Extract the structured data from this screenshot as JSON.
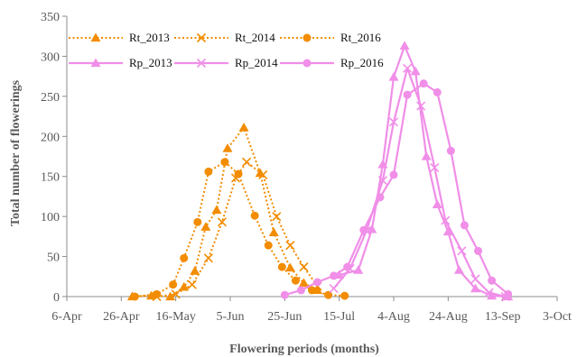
{
  "chart_data": {
    "type": "line",
    "title": "",
    "xlabel": "Flowering periods (months)",
    "ylabel": "Total number of flowerings",
    "x_type": "date",
    "xlim": [
      "6-Apr",
      "3-Oct"
    ],
    "ylim": [
      0,
      350
    ],
    "x_ticks": [
      "6-Apr",
      "26-Apr",
      "16-May",
      "5-Jun",
      "25-Jun",
      "15-Jul",
      "4-Aug",
      "24-Aug",
      "13-Sep",
      "3-Oct"
    ],
    "y_ticks": [
      0,
      50,
      100,
      150,
      200,
      250,
      300,
      350
    ],
    "grid": false,
    "legend_position": "top-left",
    "series": [
      {
        "name": "Rt_2013",
        "color": "#f28c00",
        "line": "dotted",
        "marker": "triangle",
        "x": [
          "30-Apr",
          "7-May",
          "14-May",
          "19-May",
          "23-May",
          "27-May",
          "31-May",
          "4-Jun",
          "10-Jun",
          "16-Jun",
          "21-Jun",
          "27-Jun",
          "2-Jul",
          "7-Jul"
        ],
        "y": [
          0,
          1,
          0,
          12,
          32,
          87,
          108,
          185,
          211,
          154,
          80,
          36,
          17,
          8
        ]
      },
      {
        "name": "Rt_2014",
        "color": "#f28c00",
        "line": "dotted",
        "marker": "x",
        "x": [
          "9-May",
          "16-May",
          "22-May",
          "28-May",
          "2-Jun",
          "7-Jun",
          "11-Jun",
          "17-Jun",
          "22-Jun",
          "27-Jun",
          "2-Jul",
          "7-Jul"
        ],
        "y": [
          0,
          3,
          15,
          48,
          93,
          148,
          168,
          152,
          100,
          64,
          37,
          13
        ]
      },
      {
        "name": "Rt_2016",
        "color": "#f28c00",
        "line": "dotted",
        "marker": "circle",
        "x": [
          "1-May",
          "9-May",
          "15-May",
          "19-May",
          "24-May",
          "28-May",
          "3-Jun",
          "8-Jun",
          "14-Jun",
          "19-Jun",
          "24-Jun",
          "29-Jun",
          "5-Jul",
          "11-Jul",
          "17-Jul"
        ],
        "y": [
          0,
          3,
          15,
          48,
          93,
          156,
          168,
          153,
          101,
          64,
          37,
          20,
          8,
          2,
          1
        ]
      },
      {
        "name": "Rp_2013",
        "color": "#f08ee8",
        "line": "solid",
        "marker": "triangle",
        "x": [
          "15-Jul",
          "22-Jul",
          "27-Jul",
          "31-Jul",
          "4-Aug",
          "8-Aug",
          "12-Aug",
          "16-Aug",
          "20-Aug",
          "24-Aug",
          "28-Aug",
          "3-Sep",
          "9-Sep",
          "15-Sep"
        ],
        "y": [
          27,
          33,
          84,
          165,
          274,
          313,
          281,
          175,
          115,
          81,
          33,
          10,
          1,
          0
        ]
      },
      {
        "name": "Rp_2014",
        "color": "#f08ee8",
        "line": "solid",
        "marker": "x",
        "x": [
          "13-Jul",
          "19-Jul",
          "25-Jul",
          "31-Jul",
          "4-Aug",
          "9-Aug",
          "14-Aug",
          "19-Aug",
          "23-Aug",
          "29-Aug",
          "3-Sep",
          "8-Sep",
          "14-Sep"
        ],
        "y": [
          10,
          35,
          82,
          145,
          218,
          285,
          238,
          161,
          95,
          57,
          22,
          5,
          0
        ]
      },
      {
        "name": "Rp_2016",
        "color": "#f08ee8",
        "line": "solid",
        "marker": "circle",
        "x": [
          "25-Jun",
          "1-Jul",
          "7-Jul",
          "13-Jul",
          "18-Jul",
          "24-Jul",
          "30-Jul",
          "4-Aug",
          "9-Aug",
          "15-Aug",
          "20-Aug",
          "25-Aug",
          "30-Aug",
          "4-Sep",
          "9-Sep",
          "15-Sep"
        ],
        "y": [
          2,
          8,
          18,
          26,
          37,
          83,
          124,
          152,
          252,
          266,
          255,
          182,
          89,
          57,
          20,
          3
        ]
      }
    ]
  }
}
